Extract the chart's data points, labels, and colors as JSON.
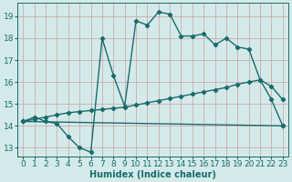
{
  "line1_x": [
    0,
    1,
    2,
    3,
    4,
    5,
    6,
    7,
    8,
    9,
    10,
    11,
    12,
    13,
    14,
    15,
    16,
    17,
    18,
    19,
    20,
    21,
    22,
    23
  ],
  "line1_y": [
    14.2,
    14.4,
    14.2,
    14.1,
    13.5,
    13.0,
    12.8,
    18.0,
    16.3,
    14.9,
    18.8,
    18.6,
    19.2,
    19.1,
    18.1,
    18.1,
    18.2,
    17.7,
    18.0,
    17.6,
    17.5,
    16.1,
    15.2,
    14.0
  ],
  "line2_x": [
    0,
    23
  ],
  "line2_y": [
    14.2,
    14.0
  ],
  "line3_x": [
    0,
    1,
    2,
    3,
    4,
    5,
    6,
    7,
    8,
    9,
    10,
    11,
    12,
    13,
    14,
    15,
    16,
    17,
    18,
    19,
    20,
    21,
    22,
    23
  ],
  "line3_y": [
    14.2,
    14.3,
    14.4,
    14.5,
    14.6,
    14.65,
    14.7,
    14.75,
    14.8,
    14.85,
    14.95,
    15.05,
    15.15,
    15.25,
    15.35,
    15.45,
    15.55,
    15.65,
    15.75,
    15.9,
    16.0,
    16.1,
    15.8,
    15.2
  ],
  "line_color": "#1a6b6b",
  "bg_color": "#d4eaea",
  "grid_color": "#afd0d0",
  "xlabel": "Humidex (Indice chaleur)",
  "xlim": [
    -0.5,
    23.5
  ],
  "ylim": [
    12.6,
    19.6
  ],
  "yticks": [
    13,
    14,
    15,
    16,
    17,
    18,
    19
  ],
  "xticks": [
    0,
    1,
    2,
    3,
    4,
    5,
    6,
    7,
    8,
    9,
    10,
    11,
    12,
    13,
    14,
    15,
    16,
    17,
    18,
    19,
    20,
    21,
    22,
    23
  ],
  "marker": "D",
  "markersize": 2.2,
  "linewidth": 1.0,
  "xlabel_fontsize": 7,
  "tick_fontsize": 6.5
}
